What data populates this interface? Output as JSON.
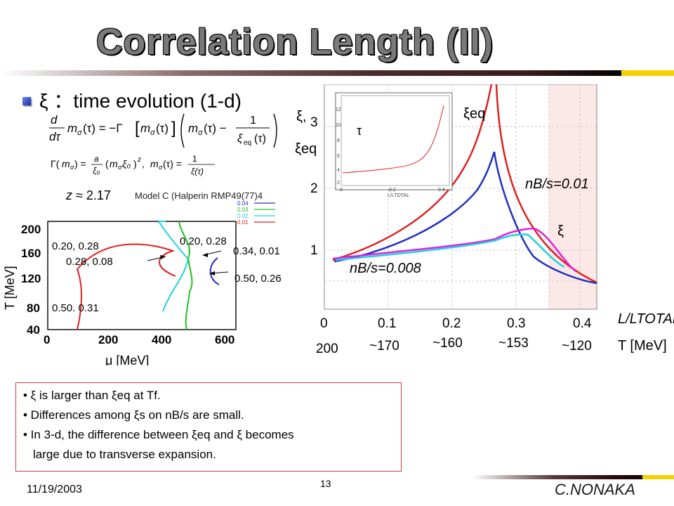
{
  "title": "Correlation Length (II)",
  "subheading": {
    "symbol": "ξ",
    "text": "：time evolution (1-d)"
  },
  "equations": {
    "line1": "d/dτ m_σ(τ) = −Γ[m_σ(τ)] ( m_σ(τ) − 1/ξ_eq(τ) )",
    "line2": "Γ(m_σ) = a/ξ0 (m_σ ξ0)^z ,  m_σ(τ) = 1/ξ(τ)",
    "line3": "z ≈ 2.17"
  },
  "model_ref": "Model C (Halperin RMP49(77)4",
  "left_plot": {
    "legend": [
      "0.04",
      "0.03",
      "0.02",
      "0.01"
    ],
    "legend_colors": [
      "#2030c0",
      "#20c020",
      "#20d0e0",
      "#e02020"
    ],
    "y_label": "T [MeV]",
    "y_ticks": [
      "200",
      "160",
      "120",
      "80",
      "40"
    ],
    "x_label": "μ [MeV]",
    "x_ticks": [
      "0",
      "200",
      "400",
      "600"
    ],
    "annotations": [
      "0.20, 0.28",
      "0.28, 0.08",
      "0.50. 0.31",
      "0.20, 0.28",
      "0.34, 0.01",
      "0.50, 0.26"
    ]
  },
  "right_plot": {
    "y_axis_label_1": "ξ,",
    "y_axis_label_2": "ξeq",
    "y_ticks": [
      "3",
      "2",
      "1"
    ],
    "x_ticks": [
      "0",
      "0.1",
      "0.2",
      "0.3",
      "0.4"
    ],
    "x_axis_label": "L/LTOTAL",
    "t_ticks": [
      "200",
      "~170",
      "~160",
      "~153",
      "~120"
    ],
    "t_axis_label": "T [MeV]",
    "curve_label_eq": "ξeq",
    "curve_label_xi": "ξ",
    "ratio_label_top": "nB/s=0.01",
    "ratio_label_bottom": "nB/s=0.008",
    "inset": {
      "symbol": "τ",
      "y_ticks": [
        "12",
        "10",
        "8",
        "6",
        "4",
        "2"
      ],
      "x_ticks": [
        "0",
        "0.2",
        "0.4"
      ],
      "x_label": "L/LTOTAL"
    }
  },
  "notes": [
    "• ξ is larger than ξeq at Tf.",
    "• Differences among ξs on nB/s are small.",
    "• In 3-d, the difference between ξeq and ξ becomes",
    "large due to transverse expansion."
  ],
  "footer": {
    "date": "11/19/2003",
    "page": "13",
    "author": "C.NONAKA"
  }
}
